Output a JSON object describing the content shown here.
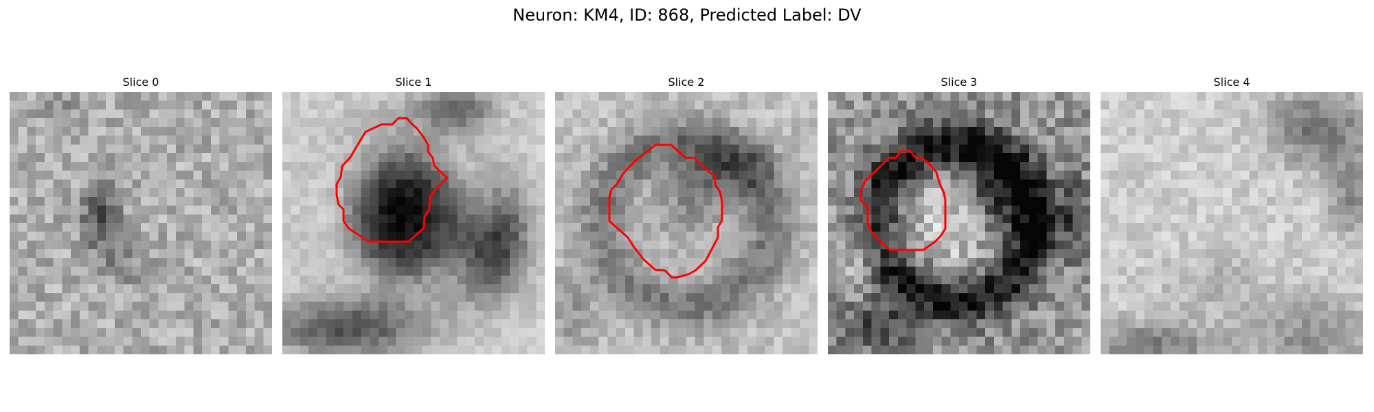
{
  "figure": {
    "title": "Neuron: KM4, ID: 868, Predicted Label: DV",
    "contour_color": "#ff0000"
  },
  "slices": [
    {
      "title": "Slice 0",
      "image_description": "noisy grayscale micrograph patch, small dark blob left of center",
      "has_contour": false
    },
    {
      "title": "Slice 1",
      "image_description": "grayscale micrograph patch with large dark cell body in center, bright rim",
      "has_contour": true
    },
    {
      "title": "Slice 2",
      "image_description": "grayscale micrograph patch with medium-gray roundish cell, darker crescent on upper right",
      "has_contour": true
    },
    {
      "title": "Slice 3",
      "image_description": "high-contrast grayscale micrograph patch, dark ring around a gray center",
      "has_contour": true
    },
    {
      "title": "Slice 4",
      "image_description": "mostly light gray noisy micrograph patch, darker corners",
      "has_contour": false
    }
  ]
}
